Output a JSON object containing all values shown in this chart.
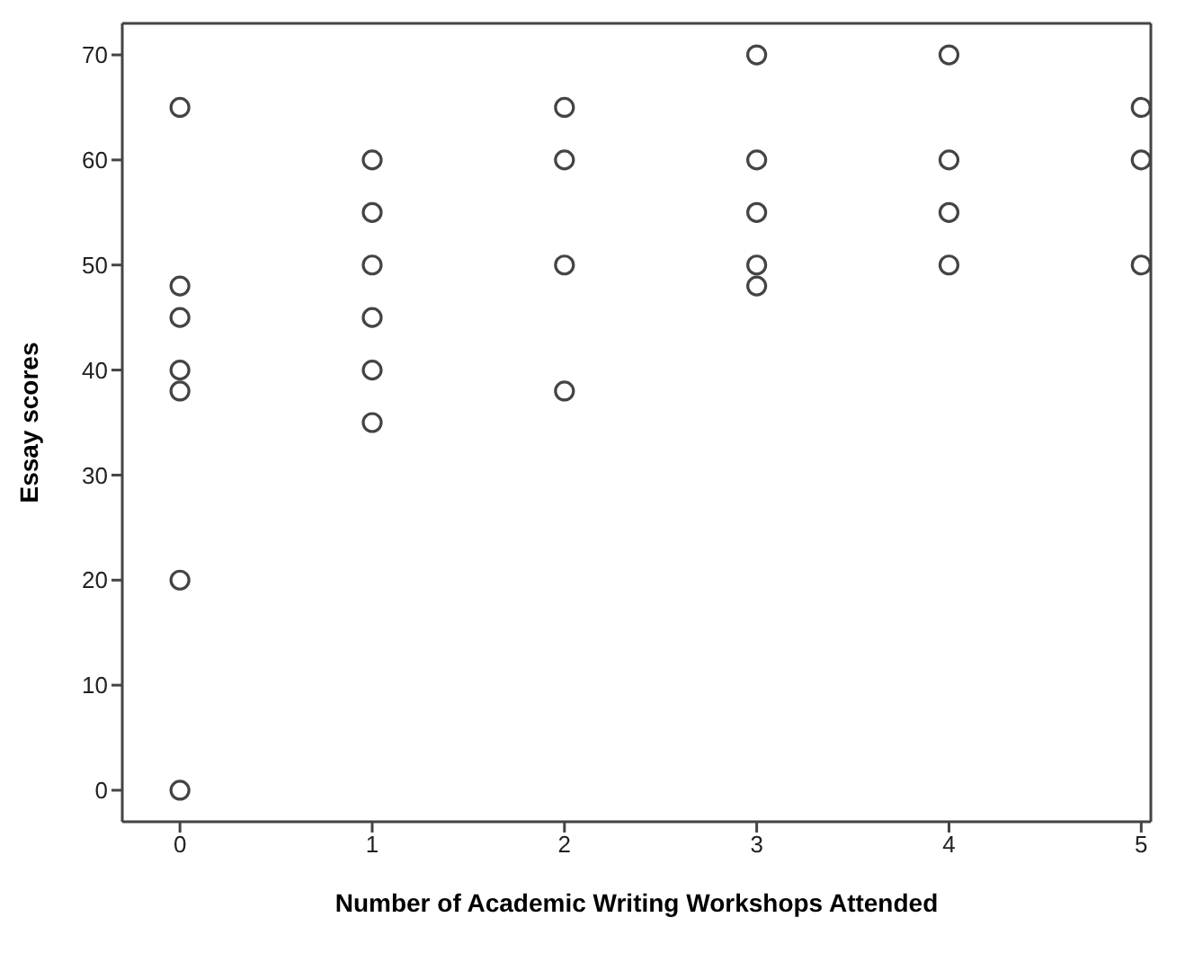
{
  "chart_data": {
    "type": "scatter",
    "xlabel": "Number of Academic Writing Workshops Attended",
    "ylabel": "Essay scores",
    "x": [
      0,
      0,
      0,
      0,
      0,
      0,
      0,
      1,
      1,
      1,
      1,
      1,
      1,
      2,
      2,
      2,
      2,
      3,
      3,
      3,
      3,
      3,
      4,
      4,
      4,
      4,
      5,
      5,
      5
    ],
    "series": [
      {
        "color": "#444444",
        "values": [
          65,
          48,
          45,
          40,
          38,
          20,
          0,
          60,
          55,
          50,
          45,
          40,
          35,
          65,
          60,
          50,
          38,
          70,
          60,
          55,
          50,
          48,
          70,
          60,
          55,
          50,
          65,
          60,
          50
        ]
      }
    ],
    "xlim": [
      -0.3,
      5.05
    ],
    "xticks": [
      0,
      1,
      2,
      3,
      4,
      5
    ],
    "ylim": [
      -3,
      73
    ],
    "yticks": [
      0,
      10,
      20,
      30,
      40,
      50,
      60,
      70
    ],
    "marker": "circle",
    "grid": false,
    "legend": false
  }
}
